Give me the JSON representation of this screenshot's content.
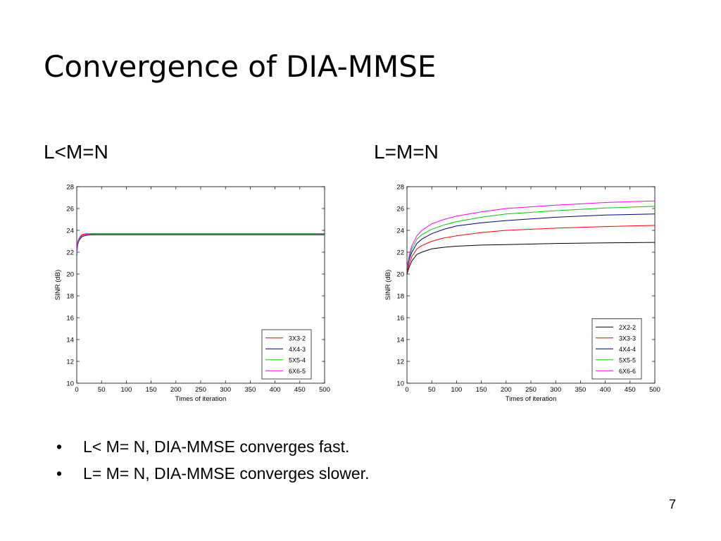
{
  "slide": {
    "title": "Convergence of DIA-MMSE",
    "subheads": [
      "L<M=N",
      "L=M=N"
    ],
    "bullets": [
      "L< M= N, DIA-MMSE converges fast.",
      "L= M= N, DIA-MMSE converges slower."
    ],
    "bullet_symbol": "•",
    "page_number": "7"
  },
  "chart_data": [
    {
      "type": "line",
      "title": "",
      "xlabel": "Times of iteration",
      "ylabel": "SINR (dB)",
      "xlim": [
        0,
        500
      ],
      "ylim": [
        10,
        28
      ],
      "xticks": [
        0,
        50,
        100,
        150,
        200,
        250,
        300,
        350,
        400,
        450,
        500
      ],
      "yticks": [
        10,
        12,
        14,
        16,
        18,
        20,
        22,
        24,
        26,
        28
      ],
      "grid": false,
      "legend_position": "bottom-right",
      "series": [
        {
          "name": "3X3-2",
          "color": "#ff0000",
          "x": [
            0,
            2,
            5,
            10,
            15,
            20,
            30,
            50,
            100,
            200,
            300,
            400,
            500
          ],
          "values": [
            21.9,
            22.9,
            23.3,
            23.6,
            23.65,
            23.7,
            23.7,
            23.7,
            23.7,
            23.7,
            23.7,
            23.7,
            23.7
          ]
        },
        {
          "name": "4X4-3",
          "color": "#000080",
          "x": [
            0,
            2,
            5,
            10,
            15,
            20,
            30,
            50,
            100,
            200,
            300,
            400,
            500
          ],
          "values": [
            21.7,
            22.7,
            23.1,
            23.4,
            23.5,
            23.55,
            23.6,
            23.6,
            23.6,
            23.6,
            23.6,
            23.6,
            23.6
          ]
        },
        {
          "name": "5X5-4",
          "color": "#00cc00",
          "x": [
            0,
            2,
            5,
            10,
            15,
            20,
            30,
            50,
            100,
            200,
            300,
            400,
            500
          ],
          "values": [
            21.8,
            22.8,
            23.2,
            23.5,
            23.6,
            23.6,
            23.65,
            23.65,
            23.65,
            23.65,
            23.65,
            23.65,
            23.65
          ]
        },
        {
          "name": "6X6-5",
          "color": "#ff00ff",
          "x": [
            0,
            2,
            5,
            10,
            15,
            20,
            30,
            50,
            100,
            200,
            300,
            400,
            500
          ],
          "values": [
            22.0,
            23.0,
            23.3,
            23.5,
            23.6,
            23.65,
            23.7,
            23.7,
            23.7,
            23.7,
            23.7,
            23.7,
            23.7
          ]
        }
      ]
    },
    {
      "type": "line",
      "title": "",
      "xlabel": "Times of iteration",
      "ylabel": "SINR (dB)",
      "xlim": [
        0,
        500
      ],
      "ylim": [
        10,
        28
      ],
      "xticks": [
        0,
        50,
        100,
        150,
        200,
        250,
        300,
        350,
        400,
        450,
        500
      ],
      "yticks": [
        10,
        12,
        14,
        16,
        18,
        20,
        22,
        24,
        26,
        28
      ],
      "grid": false,
      "legend_position": "bottom-right",
      "series": [
        {
          "name": "2X2-2",
          "color": "#000000",
          "x": [
            0,
            5,
            10,
            20,
            30,
            50,
            75,
            100,
            150,
            200,
            300,
            400,
            500
          ],
          "values": [
            20.0,
            20.7,
            21.2,
            21.8,
            22.0,
            22.3,
            22.45,
            22.55,
            22.65,
            22.7,
            22.8,
            22.85,
            22.9
          ]
        },
        {
          "name": "3X3-3",
          "color": "#ff0000",
          "x": [
            0,
            5,
            10,
            20,
            30,
            50,
            75,
            100,
            150,
            200,
            300,
            400,
            500
          ],
          "values": [
            20.2,
            21.0,
            21.6,
            22.3,
            22.6,
            23.0,
            23.3,
            23.5,
            23.8,
            24.0,
            24.2,
            24.35,
            24.45
          ]
        },
        {
          "name": "4X4-4",
          "color": "#000080",
          "x": [
            0,
            5,
            10,
            20,
            30,
            50,
            75,
            100,
            150,
            200,
            300,
            400,
            500
          ],
          "values": [
            20.4,
            21.4,
            22.0,
            22.8,
            23.2,
            23.7,
            24.1,
            24.4,
            24.7,
            24.9,
            25.2,
            25.4,
            25.5
          ]
        },
        {
          "name": "5X5-5",
          "color": "#00cc00",
          "x": [
            0,
            5,
            10,
            20,
            30,
            50,
            75,
            100,
            150,
            200,
            300,
            400,
            500
          ],
          "values": [
            20.5,
            21.6,
            22.3,
            23.2,
            23.6,
            24.1,
            24.5,
            24.8,
            25.2,
            25.5,
            25.8,
            26.05,
            26.2
          ]
        },
        {
          "name": "6X6-6",
          "color": "#ff00ff",
          "x": [
            0,
            5,
            10,
            20,
            30,
            50,
            75,
            100,
            150,
            200,
            300,
            400,
            500
          ],
          "values": [
            20.6,
            21.8,
            22.6,
            23.5,
            24.0,
            24.6,
            25.0,
            25.3,
            25.7,
            26.0,
            26.3,
            26.55,
            26.7
          ]
        }
      ]
    }
  ]
}
